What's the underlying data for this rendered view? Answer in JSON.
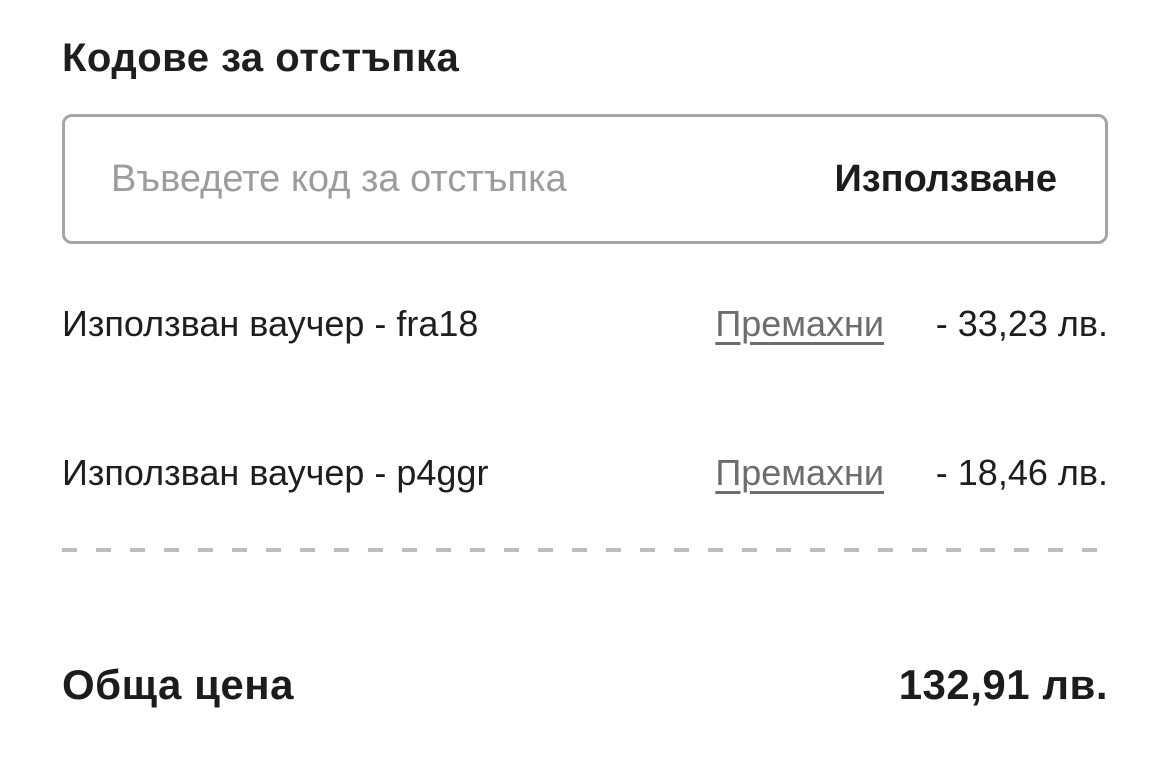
{
  "page": {
    "title": "Кодове за отстъпка"
  },
  "promo_input": {
    "placeholder": "Въведете код за отстъпка",
    "value": "",
    "apply_label": "Използване"
  },
  "vouchers": [
    {
      "label": "Използван ваучер - fra18",
      "remove_label": "Премахни",
      "amount": "- 33,23 лв."
    },
    {
      "label": "Използван ваучер - p4ggr",
      "remove_label": "Премахни",
      "amount": "- 18,46 лв."
    }
  ],
  "total": {
    "label": "Обща цена",
    "value": "132,91 лв."
  },
  "colors": {
    "background": "#ffffff",
    "text_primary": "#1e1e1e",
    "remove_link": "#6d6d6d",
    "placeholder": "#9c9c9c",
    "input_border": "#a5a5a5",
    "divider": "#bdbdbd"
  }
}
